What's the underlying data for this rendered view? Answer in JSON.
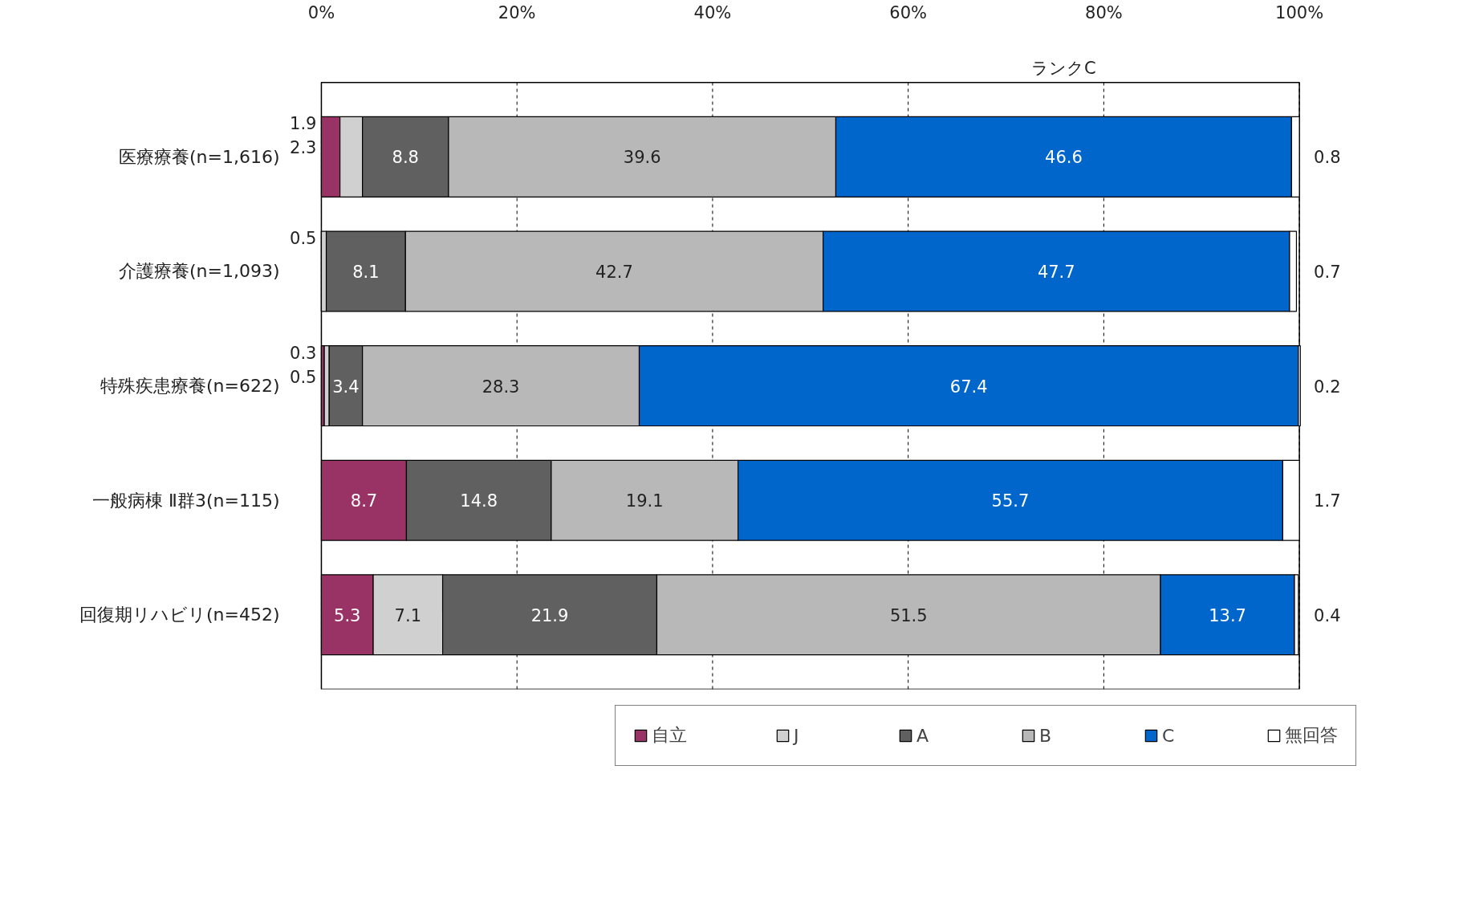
{
  "chart_data": {
    "type": "bar",
    "orientation": "horizontal",
    "stacked": true,
    "categories": [
      "医療療養(n=1,616)",
      "介護療養(n=1,093)",
      "特殊疾患療養(n=622)",
      "一般病棟 Ⅱ群3(n=115)",
      "回復期リハビリ(n=452)"
    ],
    "series": [
      {
        "name": "自立",
        "color": "#993366",
        "values": [
          1.9,
          0,
          0.3,
          8.7,
          5.3
        ],
        "value_labels": [
          "1.9",
          null,
          "0.3",
          "8.7",
          "5.3"
        ]
      },
      {
        "name": "J",
        "color": "#d0d0d0",
        "values": [
          2.3,
          0.5,
          0.5,
          0,
          7.1
        ],
        "value_labels": [
          "2.3",
          "0.5",
          "0.5",
          null,
          "7.1"
        ]
      },
      {
        "name": "A",
        "color": "#606060",
        "values": [
          8.8,
          8.1,
          3.4,
          14.8,
          21.9
        ],
        "value_labels": [
          "8.8",
          "8.1",
          "3.4",
          "14.8",
          "21.9"
        ]
      },
      {
        "name": "B",
        "color": "#b8b8b8",
        "values": [
          39.6,
          42.7,
          28.3,
          19.1,
          51.5
        ],
        "value_labels": [
          "39.6",
          "42.7",
          "28.3",
          "19.1",
          "51.5"
        ]
      },
      {
        "name": "C",
        "color": "#0066cc",
        "values": [
          46.6,
          47.7,
          67.4,
          55.7,
          13.7
        ],
        "value_labels": [
          "46.6",
          "47.7",
          "67.4",
          "55.7",
          "13.7"
        ]
      },
      {
        "name": "無回答",
        "color": "#ffffff",
        "values": [
          0.8,
          0.7,
          0.2,
          1.7,
          0.4
        ],
        "value_labels": [
          "0.8",
          "0.7",
          "0.2",
          "1.7",
          "0.4"
        ]
      }
    ],
    "xlim": [
      0,
      100
    ],
    "xticks": [
      {
        "value": 0,
        "label": "0%"
      },
      {
        "value": 20,
        "label": "20%"
      },
      {
        "value": 40,
        "label": "40%"
      },
      {
        "value": 60,
        "label": "60%"
      },
      {
        "value": 80,
        "label": "80%"
      },
      {
        "value": 100,
        "label": "100%"
      }
    ],
    "grid": "x",
    "legend": "bottom",
    "annotations": [
      "ランクC"
    ]
  }
}
